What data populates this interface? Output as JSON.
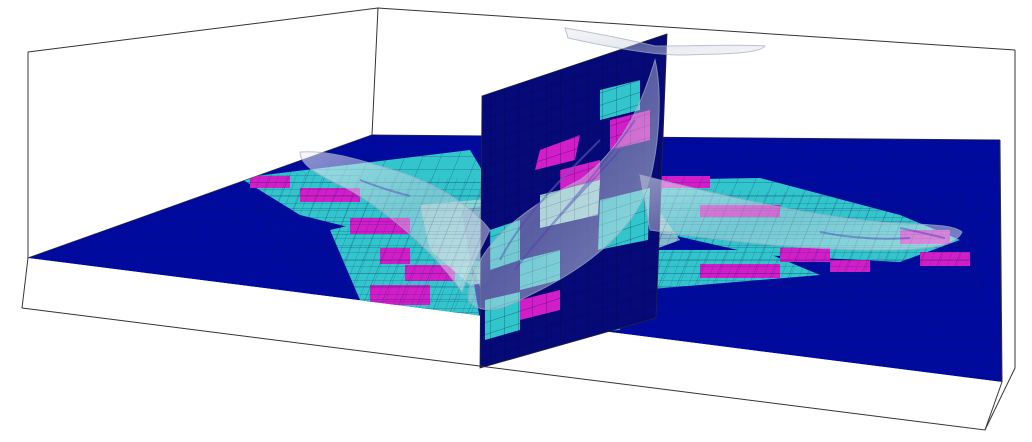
{
  "scene": {
    "background": "#ffffff",
    "bounding_box_color": "#333333",
    "refinement_levels": [
      {
        "level": 0,
        "color": "#000a9e"
      },
      {
        "level": 1,
        "color": "#32c6cc"
      },
      {
        "level": 2,
        "color": "#d21ec8"
      },
      {
        "level": 3,
        "color": "#9bd8d6"
      }
    ],
    "vertical_slice_color": "#050a78",
    "surface_color": "#d8dde6",
    "surface_opacity": 0.55,
    "surface_contour_color": "#6a5fbf",
    "icons": [
      "mesh-grid-icon",
      "aircraft-surface-icon"
    ]
  }
}
